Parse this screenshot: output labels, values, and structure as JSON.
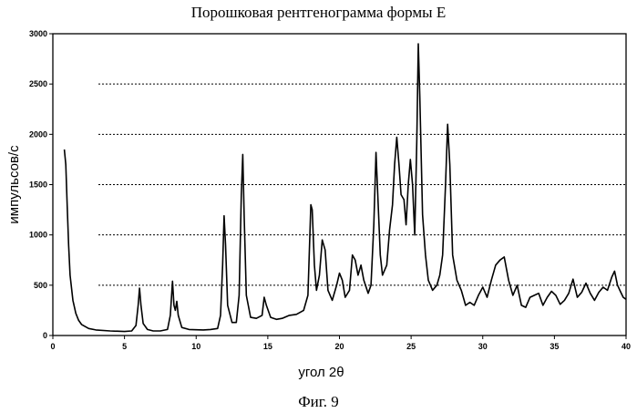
{
  "page": {
    "title": "Порошковая рентгенограмма формы E",
    "caption": "Фиг. 9"
  },
  "chart_data": {
    "type": "line",
    "title": "Порошковая рентгенограмма формы E",
    "xlabel": "угол 2θ",
    "ylabel": "импульсов/с",
    "xlim": [
      0,
      40
    ],
    "ylim": [
      0,
      3000
    ],
    "xticks": [
      0,
      5,
      10,
      15,
      20,
      25,
      30,
      35,
      40
    ],
    "yticks": [
      0,
      500,
      1000,
      1500,
      2000,
      2500,
      3000
    ],
    "grid": "horizontal dashed",
    "line_color": "#000000",
    "series": [
      {
        "points": [
          [
            0.8,
            1850
          ],
          [
            0.9,
            1700
          ],
          [
            1.0,
            1300
          ],
          [
            1.1,
            900
          ],
          [
            1.2,
            600
          ],
          [
            1.4,
            350
          ],
          [
            1.6,
            220
          ],
          [
            1.8,
            150
          ],
          [
            2.0,
            110
          ],
          [
            2.5,
            70
          ],
          [
            3.0,
            55
          ],
          [
            4.0,
            45
          ],
          [
            5.0,
            40
          ],
          [
            5.5,
            45
          ],
          [
            5.8,
            100
          ],
          [
            5.95,
            300
          ],
          [
            6.05,
            470
          ],
          [
            6.15,
            300
          ],
          [
            6.3,
            120
          ],
          [
            6.6,
            60
          ],
          [
            7.0,
            45
          ],
          [
            7.5,
            45
          ],
          [
            8.0,
            60
          ],
          [
            8.2,
            200
          ],
          [
            8.35,
            540
          ],
          [
            8.45,
            300
          ],
          [
            8.55,
            250
          ],
          [
            8.65,
            340
          ],
          [
            8.75,
            200
          ],
          [
            9.0,
            80
          ],
          [
            9.5,
            60
          ],
          [
            10.5,
            55
          ],
          [
            11.0,
            60
          ],
          [
            11.5,
            70
          ],
          [
            11.7,
            200
          ],
          [
            11.85,
            700
          ],
          [
            11.95,
            1190
          ],
          [
            12.05,
            900
          ],
          [
            12.2,
            300
          ],
          [
            12.5,
            130
          ],
          [
            12.8,
            130
          ],
          [
            13.0,
            400
          ],
          [
            13.15,
            1400
          ],
          [
            13.25,
            1800
          ],
          [
            13.35,
            1200
          ],
          [
            13.5,
            400
          ],
          [
            13.8,
            180
          ],
          [
            14.2,
            170
          ],
          [
            14.6,
            200
          ],
          [
            14.75,
            380
          ],
          [
            14.9,
            300
          ],
          [
            15.2,
            180
          ],
          [
            15.6,
            160
          ],
          [
            16.0,
            170
          ],
          [
            16.5,
            200
          ],
          [
            17.0,
            210
          ],
          [
            17.5,
            250
          ],
          [
            17.8,
            400
          ],
          [
            18.0,
            1300
          ],
          [
            18.1,
            1250
          ],
          [
            18.25,
            700
          ],
          [
            18.4,
            450
          ],
          [
            18.6,
            600
          ],
          [
            18.8,
            950
          ],
          [
            19.0,
            850
          ],
          [
            19.2,
            450
          ],
          [
            19.5,
            350
          ],
          [
            19.8,
            500
          ],
          [
            20.0,
            620
          ],
          [
            20.2,
            550
          ],
          [
            20.4,
            380
          ],
          [
            20.7,
            450
          ],
          [
            20.9,
            800
          ],
          [
            21.1,
            750
          ],
          [
            21.3,
            600
          ],
          [
            21.5,
            700
          ],
          [
            21.7,
            550
          ],
          [
            22.0,
            420
          ],
          [
            22.2,
            500
          ],
          [
            22.4,
            1100
          ],
          [
            22.55,
            1820
          ],
          [
            22.7,
            1300
          ],
          [
            22.85,
            800
          ],
          [
            23.0,
            600
          ],
          [
            23.3,
            700
          ],
          [
            23.5,
            1050
          ],
          [
            23.7,
            1300
          ],
          [
            23.85,
            1700
          ],
          [
            24.0,
            1970
          ],
          [
            24.15,
            1700
          ],
          [
            24.3,
            1400
          ],
          [
            24.5,
            1350
          ],
          [
            24.65,
            1100
          ],
          [
            24.8,
            1500
          ],
          [
            24.95,
            1750
          ],
          [
            25.1,
            1500
          ],
          [
            25.25,
            1000
          ],
          [
            25.4,
            1950
          ],
          [
            25.5,
            2900
          ],
          [
            25.6,
            2400
          ],
          [
            25.8,
            1200
          ],
          [
            26.0,
            800
          ],
          [
            26.2,
            550
          ],
          [
            26.5,
            450
          ],
          [
            26.8,
            500
          ],
          [
            27.0,
            600
          ],
          [
            27.2,
            800
          ],
          [
            27.4,
            1500
          ],
          [
            27.55,
            2100
          ],
          [
            27.7,
            1700
          ],
          [
            27.9,
            800
          ],
          [
            28.2,
            550
          ],
          [
            28.5,
            450
          ],
          [
            28.8,
            300
          ],
          [
            29.1,
            330
          ],
          [
            29.4,
            300
          ],
          [
            29.7,
            400
          ],
          [
            30.0,
            480
          ],
          [
            30.3,
            380
          ],
          [
            30.6,
            550
          ],
          [
            30.9,
            700
          ],
          [
            31.2,
            750
          ],
          [
            31.5,
            780
          ],
          [
            31.8,
            550
          ],
          [
            32.1,
            400
          ],
          [
            32.4,
            500
          ],
          [
            32.7,
            300
          ],
          [
            33.0,
            280
          ],
          [
            33.3,
            380
          ],
          [
            33.6,
            400
          ],
          [
            33.9,
            420
          ],
          [
            34.2,
            300
          ],
          [
            34.5,
            380
          ],
          [
            34.8,
            440
          ],
          [
            35.1,
            400
          ],
          [
            35.4,
            310
          ],
          [
            35.7,
            350
          ],
          [
            36.0,
            420
          ],
          [
            36.3,
            560
          ],
          [
            36.6,
            380
          ],
          [
            36.9,
            430
          ],
          [
            37.2,
            520
          ],
          [
            37.5,
            420
          ],
          [
            37.8,
            350
          ],
          [
            38.1,
            430
          ],
          [
            38.4,
            480
          ],
          [
            38.7,
            450
          ],
          [
            39.0,
            580
          ],
          [
            39.2,
            640
          ],
          [
            39.4,
            500
          ],
          [
            39.6,
            440
          ],
          [
            39.8,
            380
          ],
          [
            40.0,
            360
          ]
        ]
      }
    ]
  }
}
